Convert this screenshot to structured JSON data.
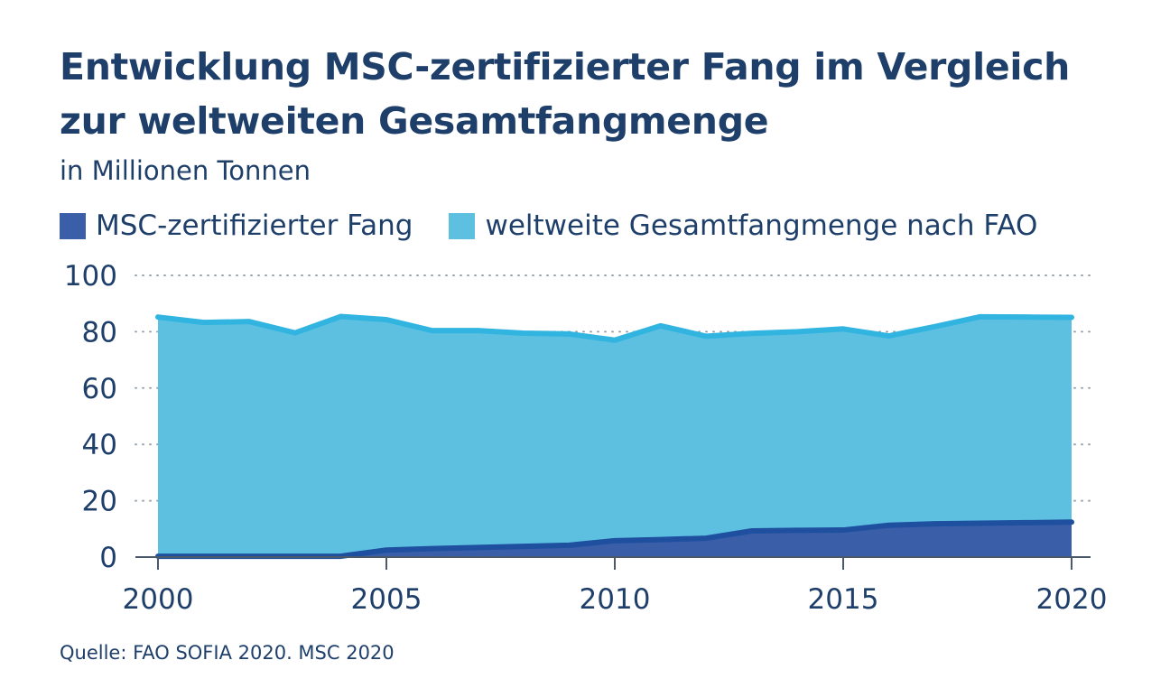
{
  "chart_data": {
    "type": "area",
    "title": [
      "Entwicklung MSC-zertifizierter Fang im Vergleich",
      "zur weltweiten Gesamtfangmenge"
    ],
    "subtitle": "in Millionen Tonnen",
    "x": [
      2000,
      2001,
      2002,
      2003,
      2004,
      2005,
      2006,
      2007,
      2008,
      2009,
      2010,
      2011,
      2012,
      2013,
      2014,
      2015,
      2016,
      2017,
      2018,
      2019,
      2020
    ],
    "series": [
      {
        "name": "MSC-zertifizierter Fang",
        "color": "#3a5ea8",
        "line_color": "#1f4f9f",
        "values": [
          0.3,
          0.3,
          0.3,
          0.3,
          0.3,
          2.5,
          3.0,
          3.4,
          3.8,
          4.2,
          5.8,
          6.2,
          6.7,
          9.3,
          9.5,
          9.6,
          11.3,
          11.8,
          12.0,
          12.2,
          12.4
        ]
      },
      {
        "name": "weltweite Gesamtfangmenge nach FAO",
        "color": "#5dc0e1",
        "line_color": "#31b4e0",
        "values": [
          85.2,
          83.3,
          83.6,
          79.6,
          85.4,
          84.3,
          80.4,
          80.4,
          79.5,
          79.2,
          77.0,
          82.1,
          78.4,
          79.4,
          80.0,
          81.0,
          78.5,
          81.8,
          85.3,
          85.2,
          85.1
        ]
      }
    ],
    "ylim": [
      0,
      100
    ],
    "y_ticks": [
      0,
      20,
      40,
      60,
      80,
      100
    ],
    "x_ticks": [
      2000,
      2005,
      2010,
      2015,
      2020
    ],
    "grid": "dotted horizontal",
    "legend": "top-left",
    "xlabel": "",
    "ylabel": ""
  },
  "source": "Quelle: FAO SOFIA 2020. MSC 2020",
  "colors": {
    "text": "#1f3f6b",
    "grid": "#9aa3ad",
    "axis": "#4a5a6a"
  }
}
